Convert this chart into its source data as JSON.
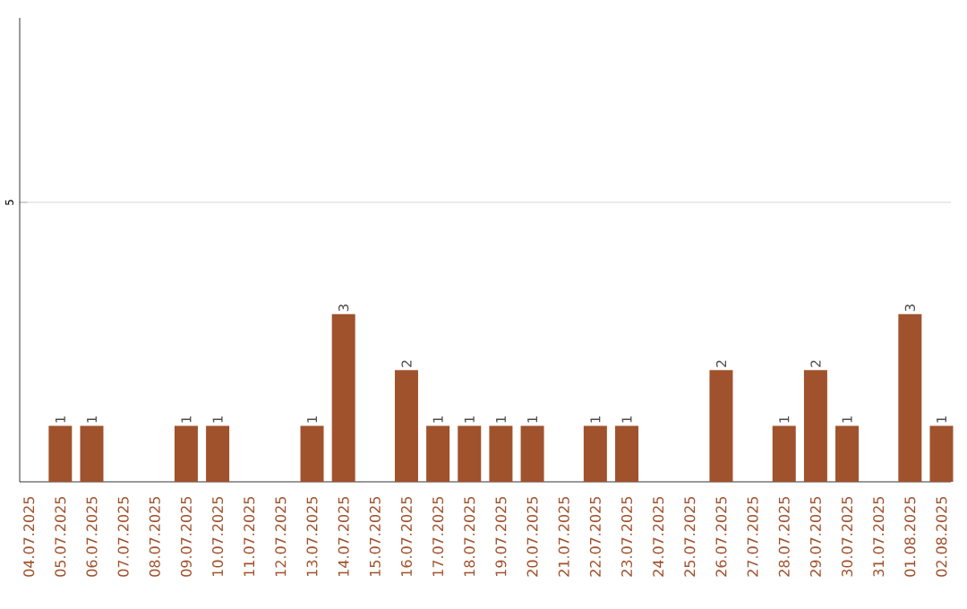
{
  "chart_data": {
    "type": "bar",
    "categories": [
      "04.07.2025",
      "05.07.2025",
      "06.07.2025",
      "07.07.2025",
      "08.07.2025",
      "09.07.2025",
      "10.07.2025",
      "11.07.2025",
      "12.07.2025",
      "13.07.2025",
      "14.07.2025",
      "15.07.2025",
      "16.07.2025",
      "17.07.2025",
      "18.07.2025",
      "19.07.2025",
      "20.07.2025",
      "21.07.2025",
      "22.07.2025",
      "23.07.2025",
      "24.07.2025",
      "25.07.2025",
      "26.07.2025",
      "27.07.2025",
      "28.07.2025",
      "29.07.2025",
      "30.07.2025",
      "31.07.2025",
      "01.08.2025",
      "02.08.2025"
    ],
    "values": [
      0,
      1,
      1,
      0,
      0,
      1,
      1,
      0,
      0,
      1,
      3,
      0,
      2,
      1,
      1,
      1,
      1,
      0,
      1,
      1,
      0,
      0,
      2,
      0,
      1,
      2,
      1,
      0,
      3,
      1
    ],
    "value_labels": [
      null,
      "1",
      "1",
      null,
      null,
      "1",
      "1",
      null,
      null,
      "1",
      "3",
      null,
      "2",
      "1",
      "1",
      "1",
      "1",
      null,
      "1",
      "1",
      null,
      null,
      "2",
      null,
      "1",
      "2",
      "1",
      null,
      "3",
      "1"
    ],
    "color": "#a0522d",
    "ylim": [
      0,
      8.3
    ],
    "yticks": [
      5
    ],
    "grid": "y"
  }
}
